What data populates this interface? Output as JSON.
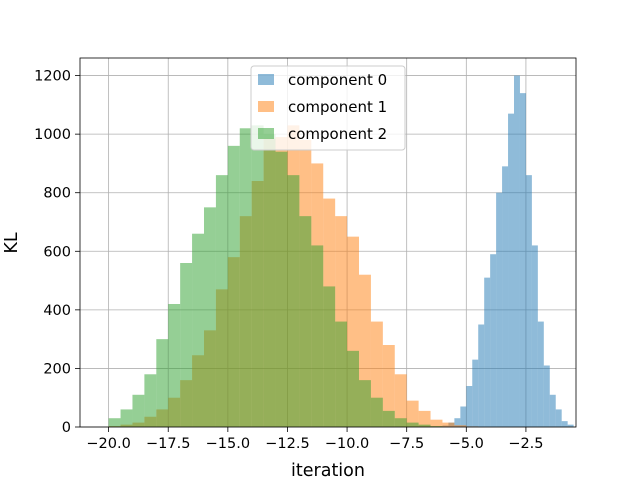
{
  "chart_data": {
    "type": "histogram",
    "title": "",
    "xlabel": "iteration",
    "ylabel": "KL",
    "xlim": [
      -21.2,
      -0.4
    ],
    "ylim": [
      0,
      1260
    ],
    "xticks": [
      -20.0,
      -17.5,
      -15.0,
      -12.5,
      -10.0,
      -7.5,
      -5.0,
      -2.5
    ],
    "xtick_labels": [
      "−20.0",
      "−17.5",
      "−15.0",
      "−12.5",
      "−10.0",
      "−7.5",
      "−5.0",
      "−2.5"
    ],
    "yticks": [
      0,
      200,
      400,
      600,
      800,
      1000,
      1200
    ],
    "ytick_labels": [
      "0",
      "200",
      "400",
      "600",
      "800",
      "1000",
      "1200"
    ],
    "grid": true,
    "legend_position": "top-center",
    "series": [
      {
        "name": "component 0",
        "color": "#1f77b4",
        "alpha": 0.5,
        "bin_start": -6.0,
        "bin_width": 0.25,
        "counts": [
          5,
          15,
          30,
          70,
          140,
          230,
          350,
          510,
          590,
          800,
          890,
          1070,
          1200,
          1140,
          860,
          620,
          360,
          210,
          110,
          60,
          20,
          8
        ]
      },
      {
        "name": "component 1",
        "color": "#ff7f0e",
        "alpha": 0.5,
        "bin_start": -20.0,
        "bin_width": 0.5,
        "counts": [
          3,
          8,
          15,
          35,
          60,
          100,
          160,
          245,
          330,
          470,
          580,
          720,
          840,
          985,
          990,
          1030,
          980,
          900,
          780,
          720,
          650,
          520,
          360,
          280,
          180,
          90,
          55,
          25,
          15,
          6,
          2
        ]
      },
      {
        "name": "component 2",
        "color": "#2ca02c",
        "alpha": 0.5,
        "bin_start": -20.0,
        "bin_width": 0.5,
        "counts": [
          30,
          60,
          110,
          180,
          300,
          420,
          560,
          660,
          750,
          860,
          960,
          1020,
          1030,
          1000,
          940,
          860,
          720,
          620,
          480,
          360,
          260,
          160,
          100,
          55,
          30,
          15,
          8,
          3
        ]
      }
    ]
  }
}
